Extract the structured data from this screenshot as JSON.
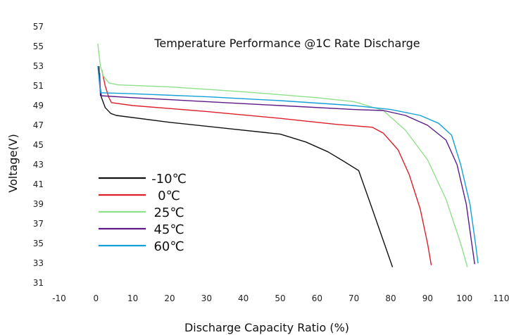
{
  "chart_data": {
    "type": "line",
    "title": "Temperature Performance @1C Rate Discharge",
    "xlabel": "Discharge Capacity Ratio (%)",
    "ylabel": "Voltage(V)",
    "xlim": [
      -10,
      110
    ],
    "ylim": [
      31,
      57
    ],
    "xticks": [
      "-10",
      "0",
      "10",
      "20",
      "30",
      "40",
      "50",
      "60",
      "70",
      "80",
      "90",
      "100",
      "110"
    ],
    "yticks": [
      "31",
      "33",
      "35",
      "37",
      "39",
      "41",
      "43",
      "45",
      "47",
      "49",
      "51",
      "53",
      "55",
      "57"
    ],
    "grid": false,
    "legend_position": "left-center",
    "series": [
      {
        "name": "-10℃",
        "color": "#111111",
        "points": [
          [
            0.8,
            53.0
          ],
          [
            1.0,
            51.2
          ],
          [
            1.5,
            49.8
          ],
          [
            2.5,
            48.8
          ],
          [
            4.0,
            48.2
          ],
          [
            5.5,
            48.0
          ],
          [
            20,
            47.3
          ],
          [
            35,
            46.7
          ],
          [
            50,
            46.1
          ],
          [
            57,
            45.3
          ],
          [
            63,
            44.3
          ],
          [
            67,
            43.4
          ],
          [
            71.3,
            42.4
          ],
          [
            75,
            38.5
          ],
          [
            80.5,
            32.6
          ]
        ]
      },
      {
        "name": "0℃",
        "color": "#dd1f2a",
        "points": [
          [
            1.6,
            52.6
          ],
          [
            2.5,
            51.0
          ],
          [
            3.5,
            49.8
          ],
          [
            4.2,
            49.3
          ],
          [
            10,
            49.0
          ],
          [
            30,
            48.4
          ],
          [
            50,
            47.7
          ],
          [
            65,
            47.1
          ],
          [
            75,
            46.8
          ],
          [
            78,
            46.2
          ],
          [
            82,
            44.5
          ],
          [
            85,
            42.0
          ],
          [
            88,
            38.5
          ],
          [
            90,
            35.0
          ],
          [
            91,
            32.8
          ]
        ]
      },
      {
        "name": "25℃",
        "color": "#8fe08a",
        "points": [
          [
            0.5,
            55.3
          ],
          [
            1.2,
            53.0
          ],
          [
            2.0,
            52.0
          ],
          [
            3.5,
            51.3
          ],
          [
            6,
            51.1
          ],
          [
            20,
            50.9
          ],
          [
            40,
            50.4
          ],
          [
            60,
            49.8
          ],
          [
            70,
            49.4
          ],
          [
            78,
            48.5
          ],
          [
            84,
            46.5
          ],
          [
            90,
            43.5
          ],
          [
            95,
            39.5
          ],
          [
            99,
            35.0
          ],
          [
            100.8,
            32.6
          ]
        ]
      },
      {
        "name": "45℃",
        "color": "#5b1a86",
        "points": [
          [
            1.0,
            52.3
          ],
          [
            1.2,
            50.0
          ],
          [
            10,
            49.8
          ],
          [
            30,
            49.4
          ],
          [
            50,
            49.0
          ],
          [
            70,
            48.6
          ],
          [
            78,
            48.5
          ],
          [
            84,
            48.0
          ],
          [
            90,
            47.0
          ],
          [
            95,
            45.5
          ],
          [
            98,
            43.0
          ],
          [
            100.5,
            39.0
          ],
          [
            102,
            35.0
          ],
          [
            102.8,
            32.9
          ]
        ]
      },
      {
        "name": "60℃",
        "color": "#149fd8",
        "points": [
          [
            0.5,
            53.0
          ],
          [
            0.9,
            51.5
          ],
          [
            1.2,
            50.3
          ],
          [
            10,
            50.2
          ],
          [
            30,
            49.9
          ],
          [
            50,
            49.5
          ],
          [
            70,
            49.0
          ],
          [
            80,
            48.6
          ],
          [
            88,
            48.0
          ],
          [
            93,
            47.2
          ],
          [
            96.5,
            46.0
          ],
          [
            99,
            43.0
          ],
          [
            101.5,
            39.0
          ],
          [
            103,
            35.0
          ],
          [
            103.7,
            33.0
          ]
        ]
      }
    ]
  }
}
